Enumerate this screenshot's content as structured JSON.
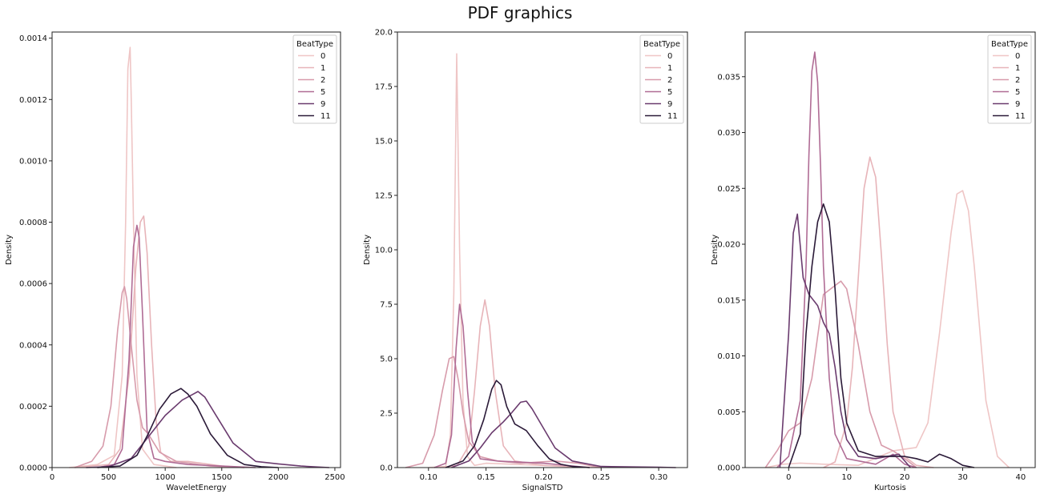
{
  "figure": {
    "title": "PDF graphics"
  },
  "colors": {
    "0": "#efc6c6",
    "1": "#e7b4b9",
    "2": "#d79bab",
    "5": "#b06c95",
    "9": "#6a3b6e",
    "11": "#2b1a38"
  },
  "chart_data": [
    {
      "type": "line",
      "xlabel": "WaveletEnergy",
      "ylabel": "Density",
      "xlim": [
        0,
        2550
      ],
      "ylim": [
        0,
        0.00142
      ],
      "xticks": [
        0,
        500,
        1000,
        1500,
        2000,
        2500
      ],
      "xtick_labels": [
        "0",
        "500",
        "1000",
        "1500",
        "2000",
        "2500"
      ],
      "yticks": [
        0,
        0.0002,
        0.0004,
        0.0006,
        0.0008,
        0.001,
        0.0012,
        0.0014
      ],
      "ytick_labels": [
        "0.0000",
        "0.0002",
        "0.0004",
        "0.0006",
        "0.0008",
        "0.0010",
        "0.0012",
        "0.0014"
      ],
      "legend": {
        "title": "BeatType",
        "placement": "top-right",
        "entries": [
          "0",
          "1",
          "2",
          "5",
          "9",
          "11"
        ]
      },
      "series": [
        {
          "name": "0",
          "x": [
            150,
            400,
            550,
            620,
            650,
            670,
            690,
            700,
            720,
            750,
            800,
            900,
            1000,
            1100
          ],
          "y": [
            0,
            1e-05,
            4e-05,
            0.0003,
            0.0008,
            0.0013,
            0.00137,
            0.0012,
            0.0008,
            0.0003,
            6e-05,
            1e-05,
            5e-06,
            0
          ]
        },
        {
          "name": "1",
          "x": [
            200,
            500,
            600,
            680,
            740,
            780,
            810,
            840,
            880,
            920,
            960,
            1050,
            1200,
            1500,
            1700
          ],
          "y": [
            0,
            1e-05,
            6e-05,
            0.0003,
            0.00065,
            0.0008,
            0.00082,
            0.0007,
            0.0004,
            0.00015,
            5e-05,
            2e-05,
            2e-05,
            5e-06,
            0
          ]
        },
        {
          "name": "2",
          "x": [
            200,
            350,
            450,
            520,
            580,
            620,
            640,
            660,
            700,
            750,
            800,
            850,
            950,
            1100,
            1400,
            1700
          ],
          "y": [
            0,
            2e-05,
            7e-05,
            0.0002,
            0.00045,
            0.00057,
            0.00059,
            0.00055,
            0.0004,
            0.00022,
            0.00013,
            0.00011,
            5e-05,
            2e-05,
            5e-06,
            0
          ]
        },
        {
          "name": "5",
          "x": [
            400,
            550,
            620,
            680,
            720,
            750,
            770,
            800,
            840,
            900,
            1000,
            1200,
            1500,
            1800
          ],
          "y": [
            0,
            1e-05,
            6e-05,
            0.00035,
            0.00072,
            0.00079,
            0.00075,
            0.0005,
            0.00012,
            3e-05,
            2e-05,
            1e-05,
            5e-06,
            0
          ]
        },
        {
          "name": "9",
          "x": [
            300,
            500,
            700,
            850,
            1000,
            1150,
            1250,
            1290,
            1350,
            1450,
            1600,
            1800,
            2000,
            2200,
            2450
          ],
          "y": [
            0,
            3e-06,
            3e-05,
            0.0001,
            0.00017,
            0.00022,
            0.00024,
            0.000248,
            0.00023,
            0.00017,
            8e-05,
            2e-05,
            1.2e-05,
            5e-06,
            0
          ]
        },
        {
          "name": "11",
          "x": [
            400,
            600,
            750,
            850,
            950,
            1050,
            1140,
            1200,
            1280,
            1400,
            1550,
            1700,
            1850,
            2000
          ],
          "y": [
            0,
            5e-06,
            4e-05,
            0.00011,
            0.00019,
            0.00024,
            0.000258,
            0.00024,
            0.0002,
            0.00011,
            4e-05,
            1e-05,
            3e-06,
            0
          ]
        }
      ]
    },
    {
      "type": "line",
      "xlabel": "SignalSTD",
      "ylabel": "Density",
      "xlim": [
        0.073,
        0.325
      ],
      "ylim": [
        0,
        20
      ],
      "xticks": [
        0.1,
        0.15,
        0.2,
        0.25,
        0.3
      ],
      "xtick_labels": [
        "0.10",
        "0.15",
        "0.20",
        "0.25",
        "0.30"
      ],
      "yticks": [
        0,
        2.5,
        5,
        7.5,
        10,
        12.5,
        15,
        17.5,
        20
      ],
      "ytick_labels": [
        "0.0",
        "2.5",
        "5.0",
        "7.5",
        "10.0",
        "12.5",
        "15.0",
        "17.5",
        "20.0"
      ],
      "legend": {
        "title": "BeatType",
        "placement": "top-right",
        "entries": [
          "0",
          "1",
          "2",
          "5",
          "9",
          "11"
        ]
      },
      "series": [
        {
          "name": "0",
          "x": [
            0.1,
            0.115,
            0.119,
            0.122,
            0.1245,
            0.127,
            0.13,
            0.134,
            0.14,
            0.15,
            0.2,
            0.25
          ],
          "y": [
            0,
            0.05,
            1.5,
            8,
            19,
            10,
            3,
            0.5,
            0.1,
            0.2,
            0.1,
            0
          ]
        },
        {
          "name": "1",
          "x": [
            0.11,
            0.125,
            0.135,
            0.14,
            0.145,
            0.149,
            0.153,
            0.158,
            0.165,
            0.175,
            0.2,
            0.24
          ],
          "y": [
            0,
            0.1,
            1.0,
            3.5,
            6.5,
            7.7,
            6.5,
            3.5,
            1.0,
            0.3,
            0.1,
            0
          ]
        },
        {
          "name": "2",
          "x": [
            0.08,
            0.095,
            0.105,
            0.112,
            0.118,
            0.122,
            0.126,
            0.13,
            0.135,
            0.145,
            0.16,
            0.18,
            0.21,
            0.23,
            0.25
          ],
          "y": [
            0,
            0.2,
            1.5,
            3.5,
            5.0,
            5.1,
            4.0,
            2.5,
            1.2,
            0.5,
            0.3,
            0.2,
            0.3,
            0.2,
            0
          ]
        },
        {
          "name": "5",
          "x": [
            0.105,
            0.115,
            0.12,
            0.124,
            0.127,
            0.13,
            0.134,
            0.138,
            0.145,
            0.16,
            0.2,
            0.24
          ],
          "y": [
            0,
            0.2,
            1.5,
            5.5,
            7.5,
            6.5,
            3.5,
            1.2,
            0.4,
            0.3,
            0.2,
            0
          ]
        },
        {
          "name": "9",
          "x": [
            0.12,
            0.135,
            0.145,
            0.155,
            0.165,
            0.172,
            0.18,
            0.185,
            0.19,
            0.2,
            0.21,
            0.225,
            0.25,
            0.3,
            0.315
          ],
          "y": [
            0,
            0.3,
            0.9,
            1.6,
            2.1,
            2.5,
            3.0,
            3.05,
            2.7,
            1.8,
            0.9,
            0.3,
            0.05,
            0.02,
            0
          ]
        },
        {
          "name": "11",
          "x": [
            0.115,
            0.13,
            0.14,
            0.148,
            0.155,
            0.159,
            0.163,
            0.168,
            0.175,
            0.185,
            0.195,
            0.205,
            0.215,
            0.225,
            0.24
          ],
          "y": [
            0,
            0.3,
            1.0,
            2.2,
            3.6,
            4.0,
            3.8,
            2.8,
            2.0,
            1.7,
            1.0,
            0.4,
            0.15,
            0.05,
            0
          ]
        }
      ]
    },
    {
      "type": "line",
      "xlabel": "Kurtosis",
      "ylabel": "Density",
      "xlim": [
        -7.5,
        42.5
      ],
      "ylim": [
        0,
        0.039
      ],
      "xticks": [
        0,
        10,
        20,
        30,
        40
      ],
      "xtick_labels": [
        "0",
        "10",
        "20",
        "30",
        "40"
      ],
      "yticks": [
        0,
        0.005,
        0.01,
        0.015,
        0.02,
        0.025,
        0.03,
        0.035
      ],
      "ytick_labels": [
        "0.000",
        "0.005",
        "0.010",
        "0.015",
        "0.020",
        "0.025",
        "0.030",
        "0.035"
      ],
      "legend": {
        "title": "BeatType",
        "placement": "top-right",
        "entries": [
          "0",
          "1",
          "2",
          "5",
          "9",
          "11"
        ]
      },
      "series": [
        {
          "name": "0",
          "x": [
            -4,
            -1,
            2,
            6,
            12,
            18,
            22,
            24,
            26,
            28,
            29,
            30,
            31,
            32,
            34,
            36,
            38
          ],
          "y": [
            0,
            0.0003,
            0.0004,
            0.0003,
            0.0002,
            0.0015,
            0.0018,
            0.004,
            0.012,
            0.021,
            0.0245,
            0.0248,
            0.023,
            0.018,
            0.006,
            0.001,
            0
          ]
        },
        {
          "name": "1",
          "x": [
            6,
            8,
            10,
            11,
            12,
            13,
            14,
            15,
            16,
            17,
            18,
            20,
            22,
            25
          ],
          "y": [
            0,
            0.0005,
            0.004,
            0.009,
            0.017,
            0.025,
            0.0278,
            0.026,
            0.019,
            0.011,
            0.005,
            0.001,
            0.0002,
            0
          ]
        },
        {
          "name": "2",
          "x": [
            -4,
            -2,
            0,
            2,
            4,
            6,
            8,
            9,
            10,
            12,
            14,
            16,
            18,
            20,
            22
          ],
          "y": [
            0,
            0.0015,
            0.0033,
            0.004,
            0.008,
            0.0155,
            0.0163,
            0.0167,
            0.016,
            0.011,
            0.005,
            0.002,
            0.0015,
            0.0008,
            0
          ]
        },
        {
          "name": "5",
          "x": [
            -2,
            0,
            2,
            3,
            3.5,
            4,
            4.5,
            5,
            5.5,
            6,
            7,
            8,
            10,
            15,
            18,
            20,
            22
          ],
          "y": [
            0,
            0.001,
            0.006,
            0.018,
            0.028,
            0.0355,
            0.0372,
            0.0345,
            0.027,
            0.018,
            0.008,
            0.003,
            0.0008,
            0.0003,
            0.0012,
            0.0003,
            0
          ]
        },
        {
          "name": "9",
          "x": [
            -1.5,
            0,
            0.8,
            1.5,
            2.5,
            3.5,
            5,
            6,
            7,
            8,
            9,
            10,
            12,
            15,
            19,
            21
          ],
          "y": [
            0,
            0.012,
            0.021,
            0.0227,
            0.017,
            0.0155,
            0.0145,
            0.013,
            0.012,
            0.009,
            0.005,
            0.0025,
            0.001,
            0.0008,
            0.0012,
            0
          ]
        },
        {
          "name": "11",
          "x": [
            0,
            2,
            3,
            4,
            5,
            6,
            7,
            8,
            9,
            10,
            12,
            15,
            20,
            22,
            24,
            26,
            28,
            30,
            32
          ],
          "y": [
            0,
            0.003,
            0.012,
            0.018,
            0.022,
            0.0236,
            0.022,
            0.016,
            0.008,
            0.004,
            0.0015,
            0.001,
            0.001,
            0.0008,
            0.0005,
            0.0012,
            0.0008,
            0.0002,
            0
          ]
        }
      ]
    }
  ]
}
